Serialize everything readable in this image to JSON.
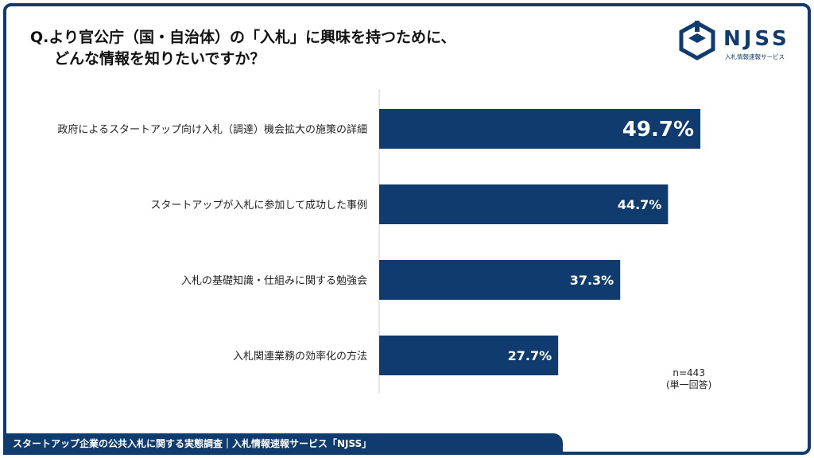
{
  "question": {
    "line1": "Q.より官公庁（国・自治体）の「入札」に興味を持つために、",
    "line2": "どんな情報を知りたいですか？"
  },
  "logo": {
    "word": "NJSS",
    "tagline": "入札情報速報サービス"
  },
  "note": {
    "n": "n=443",
    "type": "(単一回答)"
  },
  "footer": {
    "text": "スタートアップ企業の公共入札に関する実態調査｜入札情報速報サービス「NJSS」"
  },
  "colors": {
    "bar": "#0f3b6e",
    "frame": "#0f3b6e"
  },
  "chart_data": {
    "type": "bar",
    "orientation": "horizontal",
    "categories": [
      "政府によるスタートアップ向け入札（調達）機会拡大の施策の詳細",
      "スタートアップが入札に参加して成功した事例",
      "入札の基礎知識・仕組みに関する勉強会",
      "入札関連業務の効率化の方法"
    ],
    "values": [
      49.7,
      44.7,
      37.3,
      27.7
    ],
    "labels": [
      "49.7%",
      "44.7%",
      "37.3%",
      "27.7%"
    ],
    "unit": "%",
    "xlim": [
      0,
      60
    ],
    "grid": false,
    "legend": "none"
  }
}
